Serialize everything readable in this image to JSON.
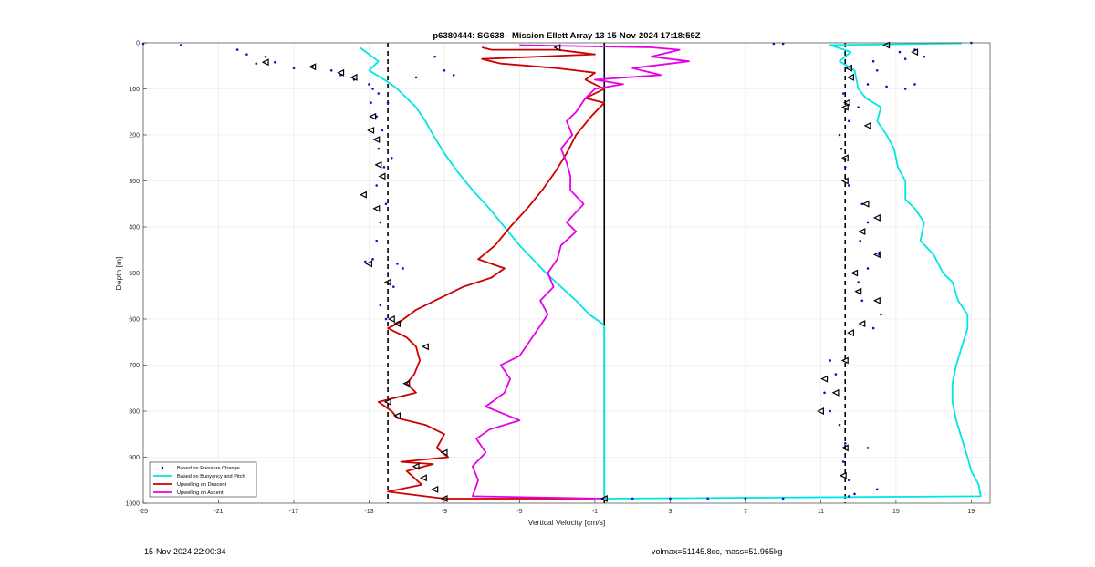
{
  "chart_data": {
    "type": "line",
    "title": "p6380444: SG638 - Mission Ellett Array 13 15-Nov-2024 17:18:59Z",
    "xlabel": "Vertical Velocity [cm/s]",
    "ylabel": "Depth [m]",
    "xlim": [
      -25,
      20
    ],
    "ylim": [
      0,
      1000
    ],
    "y_reversed": true,
    "xticks": [
      -25,
      -21,
      -17,
      -13,
      -9,
      -5,
      -1,
      3,
      7,
      11,
      15,
      19
    ],
    "yticks": [
      0,
      100,
      200,
      300,
      400,
      500,
      600,
      700,
      800,
      900,
      1000
    ],
    "grid": true,
    "legend_position": "bottom-left",
    "legend": [
      {
        "label": "Based on Pressure Change",
        "color": "#000000",
        "style": "dot"
      },
      {
        "label": "Based on Buoyancy and Pitch",
        "color": "#00e5e5",
        "style": "line"
      },
      {
        "label": "Upwelling on Descent",
        "color": "#cc0000",
        "style": "line"
      },
      {
        "label": "Upwelling on Ascent",
        "color": "#e600e6",
        "style": "line"
      }
    ],
    "reference_lines": {
      "dashed_x": [
        -12,
        12.3
      ],
      "solid_x": -0.5
    },
    "series": [
      {
        "name": "Based on Buoyancy and Pitch",
        "color": "#00e5e5",
        "points": [
          [
            -13.5,
            10
          ],
          [
            -12.5,
            40
          ],
          [
            -13,
            60
          ],
          [
            -12,
            85
          ],
          [
            -11.5,
            100
          ],
          [
            -11,
            120
          ],
          [
            -10.5,
            140
          ],
          [
            -10,
            170
          ],
          [
            -9.6,
            200
          ],
          [
            -9,
            240
          ],
          [
            -8.3,
            280
          ],
          [
            -7.5,
            320
          ],
          [
            -6.6,
            360
          ],
          [
            -5.8,
            400
          ],
          [
            -5,
            440
          ],
          [
            -4.3,
            470
          ],
          [
            -3.6,
            500
          ],
          [
            -2.8,
            530
          ],
          [
            -2,
            560
          ],
          [
            -1.3,
            590
          ],
          [
            -0.6,
            610
          ],
          [
            -0.5,
            615
          ],
          [
            -0.5,
            990
          ],
          [
            19.5,
            985
          ],
          [
            19.4,
            960
          ],
          [
            19,
            930
          ],
          [
            18.8,
            900
          ],
          [
            18.5,
            860
          ],
          [
            18.2,
            820
          ],
          [
            18,
            780
          ],
          [
            18,
            740
          ],
          [
            18.2,
            700
          ],
          [
            18.5,
            660
          ],
          [
            18.8,
            620
          ],
          [
            18.8,
            590
          ],
          [
            18.3,
            560
          ],
          [
            18,
            520
          ],
          [
            17.5,
            500
          ],
          [
            17,
            460
          ],
          [
            16.3,
            430
          ],
          [
            16.5,
            390
          ],
          [
            16,
            360
          ],
          [
            15.5,
            340
          ],
          [
            15.5,
            300
          ],
          [
            15.1,
            270
          ],
          [
            14.9,
            230
          ],
          [
            14.5,
            200
          ],
          [
            14,
            170
          ],
          [
            14.2,
            140
          ],
          [
            13.4,
            120
          ],
          [
            13,
            100
          ],
          [
            12.8,
            60
          ],
          [
            12,
            40
          ],
          [
            12.6,
            20
          ],
          [
            11.5,
            5
          ],
          [
            18.5,
            1
          ]
        ]
      },
      {
        "name": "Upwelling on Descent",
        "color": "#cc0000",
        "points": [
          [
            -7,
            10
          ],
          [
            -6.5,
            15
          ],
          [
            -3,
            15
          ],
          [
            -1,
            25
          ],
          [
            -7,
            35
          ],
          [
            -6,
            45
          ],
          [
            -3,
            55
          ],
          [
            -1,
            65
          ],
          [
            -1.5,
            80
          ],
          [
            -0.5,
            100
          ],
          [
            -1.5,
            120
          ],
          [
            -0.5,
            130
          ],
          [
            -1.2,
            160
          ],
          [
            -2,
            200
          ],
          [
            -2.5,
            240
          ],
          [
            -3.1,
            280
          ],
          [
            -3.8,
            320
          ],
          [
            -4.6,
            360
          ],
          [
            -5.5,
            400
          ],
          [
            -6.3,
            440
          ],
          [
            -7.2,
            470
          ],
          [
            -5.8,
            490
          ],
          [
            -6.5,
            510
          ],
          [
            -8,
            530
          ],
          [
            -9.5,
            560
          ],
          [
            -10.5,
            580
          ],
          [
            -11.5,
            610
          ],
          [
            -12,
            620
          ],
          [
            -11,
            640
          ],
          [
            -10.5,
            660
          ],
          [
            -10.3,
            690
          ],
          [
            -10.6,
            720
          ],
          [
            -11,
            740
          ],
          [
            -10.5,
            760
          ],
          [
            -12.5,
            780
          ],
          [
            -11.8,
            800
          ],
          [
            -11.5,
            815
          ],
          [
            -10,
            830
          ],
          [
            -9,
            850
          ],
          [
            -9.4,
            880
          ],
          [
            -8.8,
            900
          ],
          [
            -11.3,
            910
          ],
          [
            -9.6,
            915
          ],
          [
            -11,
            930
          ],
          [
            -10.2,
            960
          ],
          [
            -12,
            975
          ],
          [
            -9,
            990
          ],
          [
            -1,
            990
          ]
        ]
      },
      {
        "name": "Upwelling on Ascent",
        "color": "#e600e6",
        "points": [
          [
            -0.5,
            990
          ],
          [
            -7.5,
            985
          ],
          [
            -7.2,
            950
          ],
          [
            -7.5,
            920
          ],
          [
            -6.8,
            890
          ],
          [
            -7.3,
            860
          ],
          [
            -6.6,
            840
          ],
          [
            -5,
            820
          ],
          [
            -6.8,
            790
          ],
          [
            -5.8,
            760
          ],
          [
            -5.5,
            730
          ],
          [
            -6,
            700
          ],
          [
            -5,
            680
          ],
          [
            -4.5,
            650
          ],
          [
            -4,
            620
          ],
          [
            -3.5,
            590
          ],
          [
            -3.9,
            560
          ],
          [
            -3.2,
            530
          ],
          [
            -3.5,
            500
          ],
          [
            -3,
            470
          ],
          [
            -2.8,
            440
          ],
          [
            -2,
            410
          ],
          [
            -2.5,
            390
          ],
          [
            -1.6,
            350
          ],
          [
            -2.3,
            320
          ],
          [
            -2.3,
            290
          ],
          [
            -2.5,
            260
          ],
          [
            -2.8,
            230
          ],
          [
            -2.2,
            200
          ],
          [
            -2.5,
            170
          ],
          [
            -2,
            150
          ],
          [
            -1.5,
            120
          ],
          [
            -1,
            100
          ],
          [
            0.5,
            90
          ],
          [
            -1,
            80
          ],
          [
            2.5,
            70
          ],
          [
            1,
            55
          ],
          [
            4,
            40
          ],
          [
            2,
            30
          ],
          [
            3.5,
            15
          ],
          [
            2,
            10
          ],
          [
            -5,
            5
          ]
        ]
      }
    ],
    "scatter_pressure_change": [
      [
        -25,
        2
      ],
      [
        -23,
        5
      ],
      [
        -20,
        15
      ],
      [
        -19.5,
        25
      ],
      [
        -18.5,
        30
      ],
      [
        -19,
        45
      ],
      [
        -18,
        42
      ],
      [
        -17,
        55
      ],
      [
        -16,
        50
      ],
      [
        -15,
        60
      ],
      [
        -14.5,
        70
      ],
      [
        -13.8,
        80
      ],
      [
        -13,
        90
      ],
      [
        -12.8,
        100
      ],
      [
        -12.5,
        110
      ],
      [
        -12.9,
        130
      ],
      [
        -12.6,
        160
      ],
      [
        -12.3,
        190
      ],
      [
        -12.5,
        230
      ],
      [
        -12.2,
        270
      ],
      [
        -12.6,
        310
      ],
      [
        -12.1,
        350
      ],
      [
        -12.4,
        390
      ],
      [
        -12.6,
        430
      ],
      [
        -12.8,
        470
      ],
      [
        -12,
        500
      ],
      [
        -11.7,
        530
      ],
      [
        -12.4,
        570
      ],
      [
        -12.1,
        600
      ],
      [
        -11.5,
        480
      ],
      [
        -11.2,
        490
      ],
      [
        -13.2,
        475
      ],
      [
        -9.5,
        30
      ],
      [
        -9,
        60
      ],
      [
        -8.5,
        70
      ],
      [
        -10.5,
        75
      ],
      [
        -12,
        130
      ],
      [
        -11.8,
        250
      ],
      [
        11.5,
        690
      ],
      [
        11.8,
        720
      ],
      [
        11.2,
        760
      ],
      [
        11.5,
        800
      ],
      [
        12,
        830
      ],
      [
        12.3,
        870
      ],
      [
        12.2,
        910
      ],
      [
        12.5,
        950
      ],
      [
        12.8,
        980
      ],
      [
        13.5,
        880
      ],
      [
        13.8,
        620
      ],
      [
        14.2,
        590
      ],
      [
        13.2,
        560
      ],
      [
        13,
        520
      ],
      [
        13.5,
        490
      ],
      [
        14.1,
        460
      ],
      [
        13.1,
        430
      ],
      [
        13.5,
        390
      ],
      [
        13.2,
        350
      ],
      [
        12.5,
        310
      ],
      [
        12.3,
        270
      ],
      [
        12.1,
        230
      ],
      [
        12,
        200
      ],
      [
        12.5,
        170
      ],
      [
        13,
        140
      ],
      [
        12.2,
        110
      ],
      [
        13.5,
        90
      ],
      [
        14.5,
        95
      ],
      [
        15.5,
        100
      ],
      [
        16,
        90
      ],
      [
        14,
        60
      ],
      [
        13.8,
        40
      ],
      [
        15.2,
        20
      ],
      [
        16,
        15
      ],
      [
        15.5,
        35
      ],
      [
        16.5,
        30
      ],
      [
        8.5,
        2
      ],
      [
        9,
        2
      ],
      [
        19,
        0
      ],
      [
        1,
        990
      ],
      [
        3,
        990
      ],
      [
        5,
        990
      ],
      [
        7,
        990
      ],
      [
        9,
        990
      ],
      [
        12.5,
        985
      ],
      [
        14,
        970
      ]
    ],
    "triangle_markers": [
      [
        -18.5,
        42
      ],
      [
        -16,
        52
      ],
      [
        -14.5,
        65
      ],
      [
        -13.8,
        75
      ],
      [
        -12.8,
        160
      ],
      [
        -12.9,
        190
      ],
      [
        -12.6,
        210
      ],
      [
        -12.5,
        265
      ],
      [
        -12.3,
        290
      ],
      [
        -13.3,
        330
      ],
      [
        -12.6,
        360
      ],
      [
        -13,
        480
      ],
      [
        -12,
        520
      ],
      [
        -11.8,
        600
      ],
      [
        -11.5,
        610
      ],
      [
        -10,
        660
      ],
      [
        -11,
        740
      ],
      [
        -12,
        780
      ],
      [
        -11.5,
        810
      ],
      [
        -9,
        890
      ],
      [
        -10.5,
        920
      ],
      [
        -10.1,
        945
      ],
      [
        -9.5,
        970
      ],
      [
        -9,
        990
      ],
      [
        -3,
        10
      ],
      [
        -0.5,
        990
      ],
      [
        12.5,
        55
      ],
      [
        12.6,
        75
      ],
      [
        12.4,
        130
      ],
      [
        12.3,
        140
      ],
      [
        13.5,
        180
      ],
      [
        12.3,
        250
      ],
      [
        12.3,
        300
      ],
      [
        13.4,
        350
      ],
      [
        14,
        380
      ],
      [
        13.2,
        410
      ],
      [
        14,
        460
      ],
      [
        12.8,
        500
      ],
      [
        13,
        540
      ],
      [
        14,
        560
      ],
      [
        13.2,
        610
      ],
      [
        12.6,
        630
      ],
      [
        12.3,
        690
      ],
      [
        11.2,
        730
      ],
      [
        11.8,
        760
      ],
      [
        11,
        800
      ],
      [
        12.3,
        880
      ],
      [
        12.2,
        940
      ],
      [
        16,
        20
      ],
      [
        14.5,
        5
      ]
    ]
  },
  "footer": {
    "left": "15-Nov-2024 22:00:34",
    "right": "volmax=51145.8cc, mass=51.965kg"
  }
}
